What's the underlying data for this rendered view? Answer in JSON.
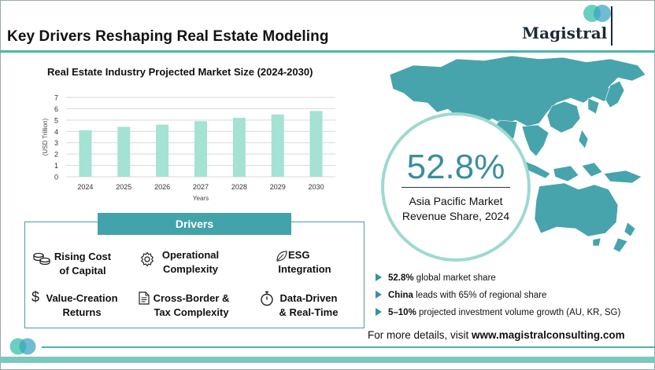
{
  "header": {
    "title": "Key Drivers Reshaping Real Estate Modeling",
    "logo_text": "Magistral"
  },
  "colors": {
    "accent": "#43a3aa",
    "bar": "#a4e2d3",
    "stat": "#3b8f9c",
    "map": "#47a4ac"
  },
  "chart_data": {
    "type": "bar",
    "title": "Real Estate Industry Projected Market Size (2024-2030)",
    "xlabel": "Years",
    "ylabel": "(USD Trillion)",
    "categories": [
      "2024",
      "2025",
      "2026",
      "2027",
      "2028",
      "2029",
      "2030"
    ],
    "values": [
      4.1,
      4.4,
      4.6,
      4.9,
      5.2,
      5.5,
      5.8
    ],
    "ylim": [
      0,
      7
    ],
    "yticks": [
      "0",
      "1",
      "2",
      "3",
      "4",
      "5",
      "6",
      "7"
    ],
    "grid": true
  },
  "drivers": {
    "title": "Drivers",
    "items": [
      {
        "icon": "coins-icon",
        "line1": "Rising Cost",
        "line2": "of Capital"
      },
      {
        "icon": "gear-icon",
        "line1": "Operational",
        "line2": "Complexity"
      },
      {
        "icon": "leaf-icon",
        "line1": "ESG",
        "line2": "Integration"
      },
      {
        "icon": "dollar-icon",
        "line1": "Value-Creation",
        "line2": "Returns"
      },
      {
        "icon": "document-icon",
        "line1": "Cross-Border &",
        "line2": "Tax Complexity"
      },
      {
        "icon": "stopwatch-icon",
        "line1": "Data-Driven",
        "line2": "& Real-Time"
      }
    ]
  },
  "stat": {
    "value": "52.8%",
    "label_line1": "Asia Pacific Market",
    "label_line2": "Revenue Share, 2024"
  },
  "bullets": [
    {
      "bold": "52.8%",
      "rest": " global market share"
    },
    {
      "bold": "China",
      "rest": " leads with 65% of regional share"
    },
    {
      "bold": "5–10%",
      "rest": " projected investment volume growth (AU, KR, SG)"
    }
  ],
  "footer": {
    "prefix": "For more details, visit ",
    "url": "www.magistralconsulting.com"
  }
}
